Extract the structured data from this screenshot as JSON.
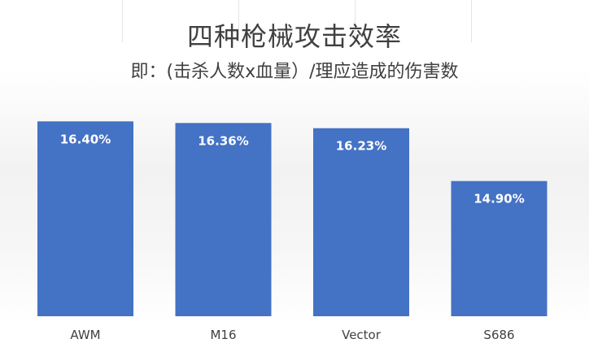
{
  "chart_data": {
    "type": "bar",
    "title": "四种枪械攻击效率",
    "subtitle": "即：(击杀人数x血量）/理应造成的伤害数",
    "categories": [
      "AWM",
      "M16",
      "Vector",
      "S686"
    ],
    "values": [
      16.4,
      16.36,
      16.23,
      14.9
    ],
    "data_labels": [
      "16.40%",
      "16.36%",
      "16.23%",
      "14.90%"
    ],
    "value_unit": "%",
    "ylim": [
      11.5,
      17.0
    ],
    "grid": false,
    "legend": "none",
    "colors": {
      "bar": "#4472C4",
      "bar_label": "#FFFFFF",
      "text": "#404040"
    }
  }
}
